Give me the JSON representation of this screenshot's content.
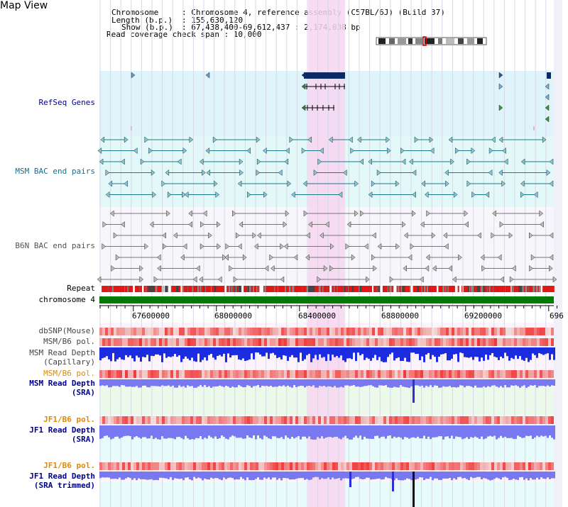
{
  "title": "Map View",
  "info": {
    "chromosome_key": "Chromosome",
    "chromosome_val": ": Chromosome 4, reference assembly (C57BL/6J) (Build 37)",
    "length_key": "Length (b.p.)",
    "length_val": ": 155,630,120",
    "show_key": "Show (b.p.)",
    "show_val": ": 67,438,400-69,612,437 : 2,174,038 bp",
    "coverage": "Read coverage check span : 10,000"
  },
  "tracks": {
    "refseq": "RefSeq Genes",
    "msm_bac": "MSM BAC end pairs",
    "b6n_bac": "B6N BAC end pairs",
    "repeat": "Repeat",
    "chromosome": "chromosome 4",
    "dbsnp": "dbSNP(Mouse)",
    "msm_pol": "MSM/B6 pol.",
    "msm_depth_cap_1": "MSM Read Depth",
    "msm_depth_cap_2": "(Capillary)",
    "msm_pol2": "MSM/B6 pol.",
    "msm_depth_sra_1": "MSM Read Depth",
    "msm_depth_sra_2": "(SRA)",
    "jf1_pol": "JF1/B6 pol.",
    "jf1_depth_sra_1": "JF1 Read Depth",
    "jf1_depth_sra_2": "(SRA)",
    "jf1_pol2": "JF1/B6 pol.",
    "jf1_depth_trim_1": "JF1 Read Depth",
    "jf1_depth_trim_2": "(SRA trimmed)"
  },
  "axis_ticks": [
    "67600000",
    "68000000",
    "68400000",
    "68800000",
    "69200000",
    "696"
  ],
  "colors": {
    "refseq_bg": "#dff3fb",
    "msm_bg": "#e3f8f8",
    "b6n_bg": "#f7f7fb",
    "highlight": "#f7d6f1",
    "gene": "#0a2a66",
    "msm_feat": "#1a7a8a",
    "b6n_feat": "#777777",
    "chrom_bar": "#007a00",
    "depth_cap": "#1a2be0",
    "depth_sra": "#7878f0",
    "label_blue": "#00008b",
    "label_teal": "#1a6e8a",
    "label_orange": "#e08a00"
  }
}
